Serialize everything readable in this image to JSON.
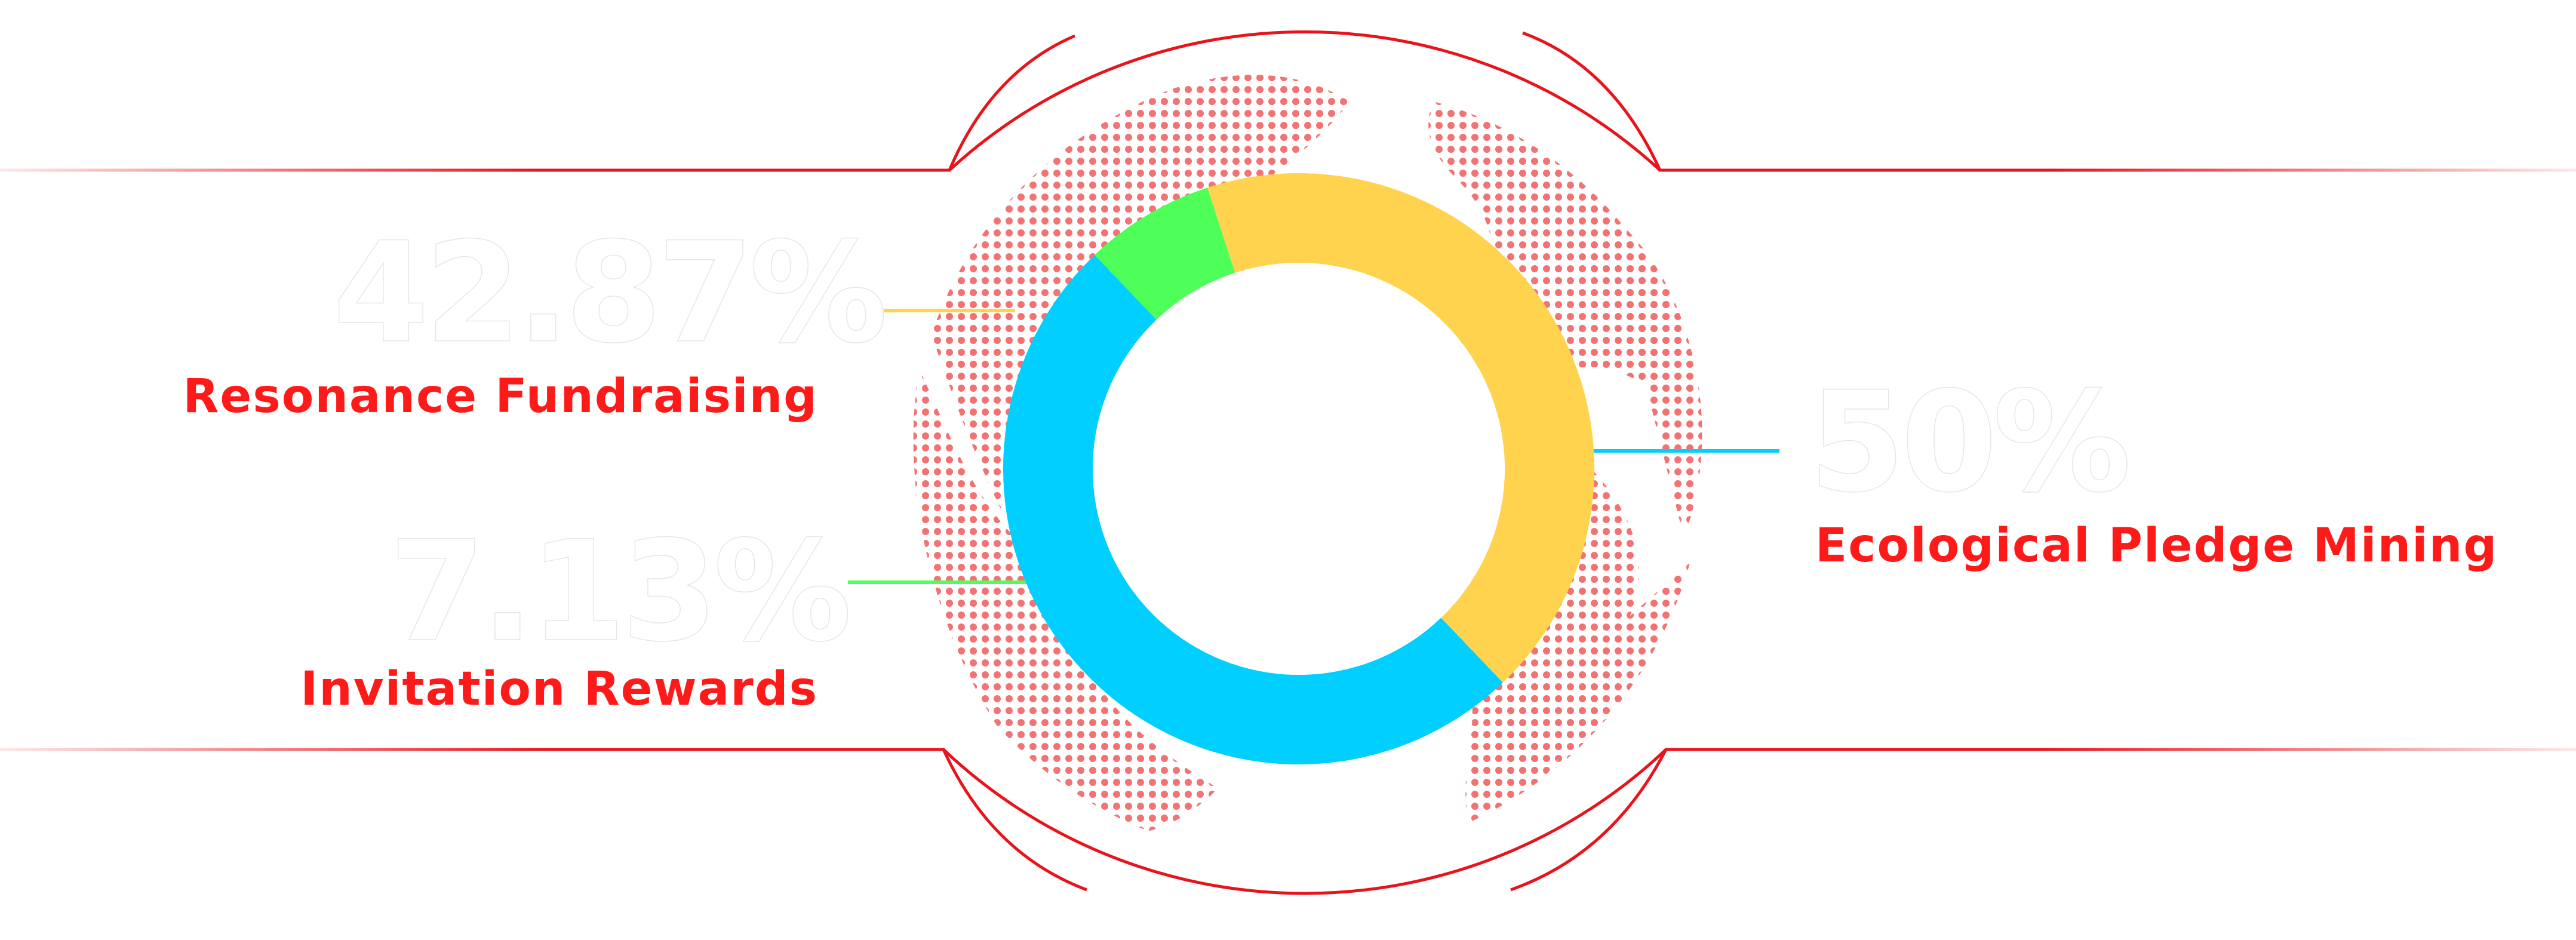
{
  "chart_data": {
    "type": "pie",
    "donut": true,
    "series": [
      {
        "label": "Resonance Fundraising",
        "value": 42.87,
        "value_label": "42.87%",
        "color": "#FFD34E"
      },
      {
        "label": "Ecological Pledge Mining",
        "value": 50,
        "value_label": "50%",
        "color": "#00CFFF"
      },
      {
        "label": "Invitation Rewards",
        "value": 7.13,
        "value_label": "7.13%",
        "color": "#4DFF58"
      }
    ]
  },
  "colors": {
    "frame": "#e8141c",
    "globe_dots": "#f05a5a",
    "label_text": "#ff1a1a",
    "percent_text": "#ffffff"
  }
}
